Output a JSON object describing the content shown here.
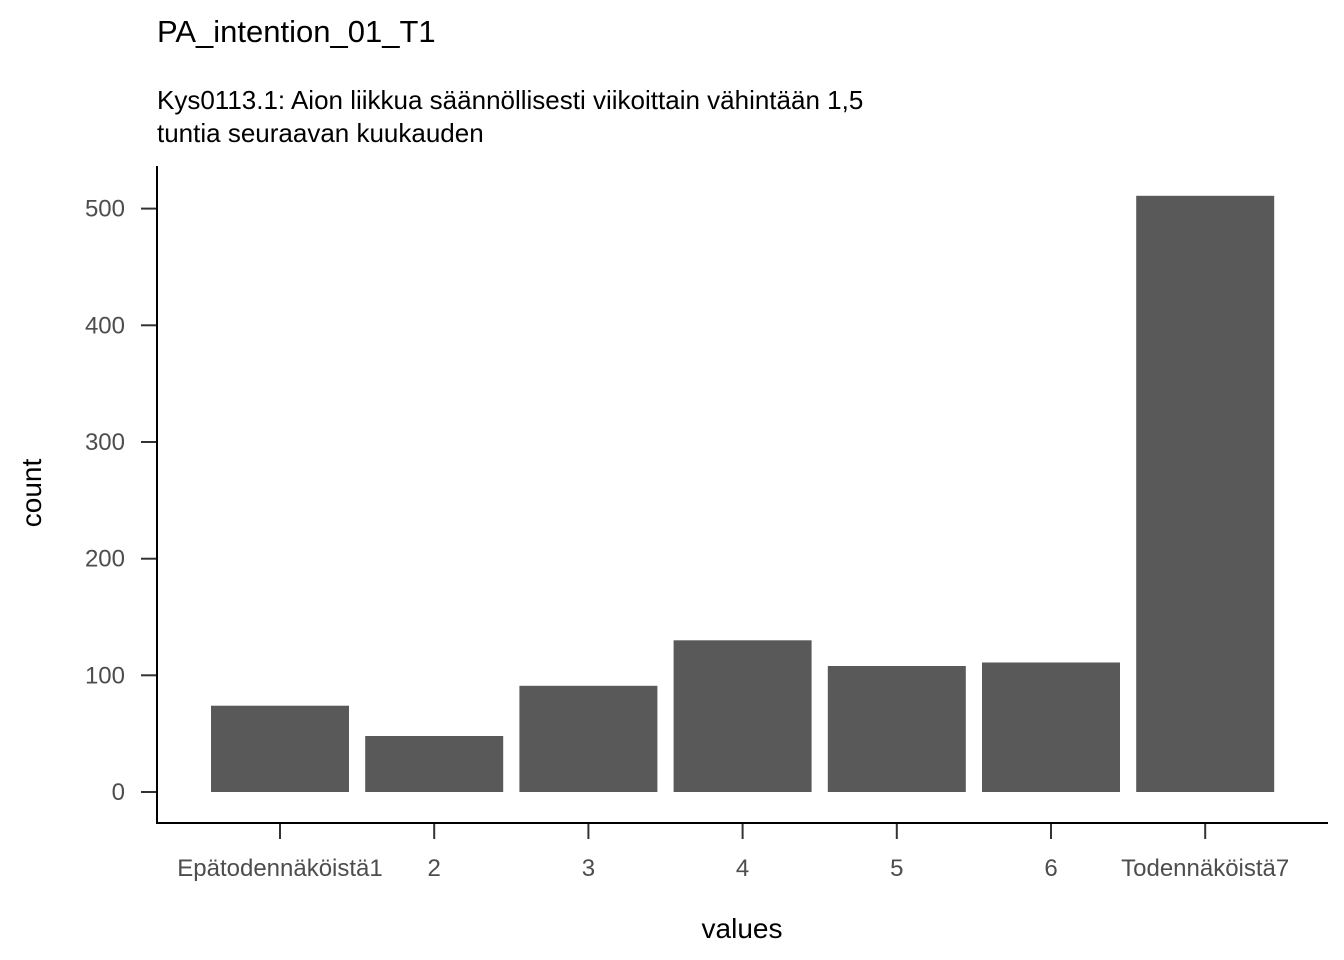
{
  "chart_data": {
    "type": "bar",
    "title": "PA_intention_01_T1",
    "subtitle_lines": [
      "Kys0113.1: Aion liikkua säännöllisesti viikoittain vähintään 1,5",
      "tuntia seuraavan kuukauden"
    ],
    "xlabel": "values",
    "ylabel": "count",
    "categories": [
      "Epätodennäköistä1",
      "2",
      "3",
      "4",
      "5",
      "6",
      "Todennäköistä7"
    ],
    "values": [
      74,
      48,
      91,
      130,
      108,
      111,
      511
    ],
    "ylim": [
      0,
      540
    ],
    "yticks": [
      0,
      100,
      200,
      300,
      400,
      500
    ],
    "grid": false,
    "legend": "none",
    "bar_color": "#595959"
  }
}
